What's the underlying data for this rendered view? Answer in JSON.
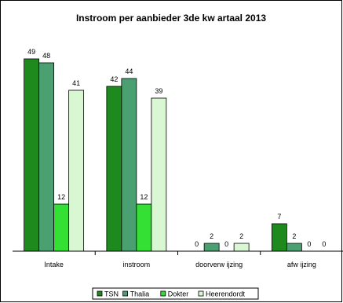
{
  "chart_data": {
    "type": "bar",
    "title": "Instroom per aanbieder 3de kw artaal 2013",
    "categories": [
      "Intake",
      "instroom",
      "doorverw ijzing",
      "afw ijzing"
    ],
    "series": [
      {
        "name": "TSN",
        "values": [
          49,
          42,
          0,
          7
        ],
        "color": "#1e8a1e"
      },
      {
        "name": "Thalia",
        "values": [
          48,
          44,
          2,
          2
        ],
        "color": "#4aa070"
      },
      {
        "name": "Dokter",
        "values": [
          12,
          12,
          0,
          0
        ],
        "color": "#33e033"
      },
      {
        "name": "Heerendordt",
        "values": [
          41,
          39,
          2,
          0
        ],
        "color": "#d9f7d2"
      }
    ],
    "ylim": [
      0,
      55
    ],
    "grid": false,
    "legend_position": "bottom"
  }
}
